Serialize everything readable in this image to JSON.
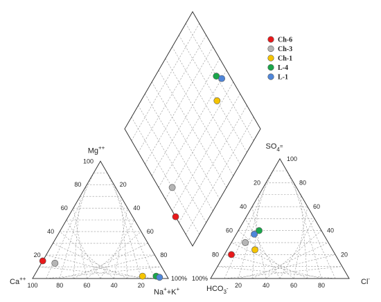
{
  "chart_data": {
    "type": "scatter",
    "subtype": "piper-diagram",
    "title": "",
    "samples": [
      {
        "name": "Ch-6",
        "color": "#e8191b",
        "cation": {
          "Ca": 85,
          "Mg": 15,
          "NaK": 0
        },
        "anion": {
          "Cl": 5,
          "SO4": 20,
          "HCO3": 75
        }
      },
      {
        "name": "Ch-3",
        "color": "#b5b5b5",
        "cation": {
          "Ca": 77,
          "Mg": 13,
          "NaK": 10
        },
        "anion": {
          "Cl": 10,
          "SO4": 30,
          "HCO3": 60
        }
      },
      {
        "name": "Ch-1",
        "color": "#f5c400",
        "cation": {
          "Ca": 18,
          "Mg": 2,
          "NaK": 80
        },
        "anion": {
          "Cl": 20,
          "SO4": 24,
          "HCO3": 56
        }
      },
      {
        "name": "L-4",
        "color": "#1aa64a",
        "cation": {
          "Ca": 8,
          "Mg": 2,
          "NaK": 90
        },
        "anion": {
          "Cl": 15,
          "SO4": 40,
          "HCO3": 45
        }
      },
      {
        "name": "L-1",
        "color": "#4f86d9",
        "cation": {
          "Ca": 6,
          "Mg": 1,
          "NaK": 93
        },
        "anion": {
          "Cl": 13,
          "SO4": 37,
          "HCO3": 50
        }
      }
    ],
    "ticks": [
      "20",
      "40",
      "60",
      "80",
      "100"
    ],
    "corner_100": "100%",
    "axes": {
      "cation": {
        "left": "Ca",
        "left_sup": "++",
        "top": "Mg",
        "top_sup": "++",
        "right": "Na",
        "right_sup": "+",
        "right2": "+K",
        "right2_sup": "+"
      },
      "anion": {
        "left": "HCO",
        "left_sub": "3",
        "left_sup": "-",
        "top": "SO",
        "top_sub": "4",
        "top_sup": "=",
        "right": "Cl",
        "right_sup": "-"
      }
    },
    "legend": {
      "position": "top-right"
    },
    "grid": true
  }
}
